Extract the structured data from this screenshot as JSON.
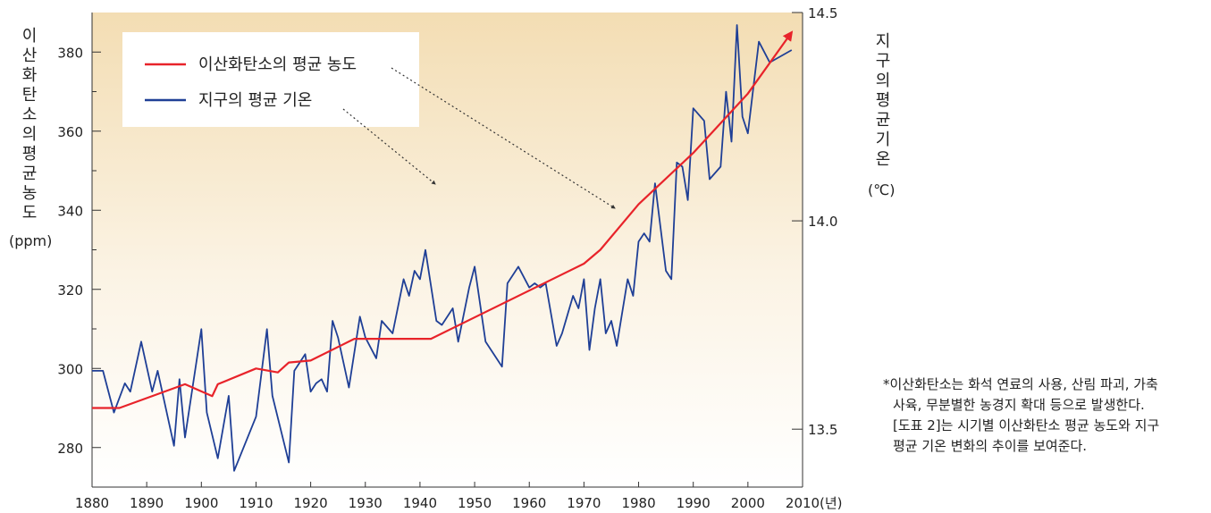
{
  "chart_data": {
    "type": "line",
    "x_range": [
      1880,
      2010
    ],
    "x_ticks": [
      "1880",
      "1890",
      "1900",
      "1910",
      "1920",
      "1930",
      "1940",
      "1950",
      "1960",
      "1970",
      "1980",
      "1990",
      "2000",
      "2010"
    ],
    "x_unit": "(년)",
    "y_left": {
      "label": "이산화탄소의 평균 농도",
      "unit": "(ppm)",
      "range": [
        270,
        390
      ],
      "ticks": [
        "280",
        "300",
        "320",
        "340",
        "360",
        "380"
      ]
    },
    "y_right": {
      "label": "지구의 평균 기온",
      "unit": "(℃)",
      "range": [
        13.361,
        14.5
      ],
      "ticks": [
        "13.5",
        "14.0",
        "14.5"
      ]
    },
    "series": [
      {
        "name": "이산화탄소의 평균 농도",
        "color": "#e8232a",
        "axis": "left",
        "arrow": true,
        "x": [
          1880,
          1885,
          1897,
          1902,
          1903,
          1910,
          1914,
          1916,
          1920,
          1928,
          1942,
          1970,
          1973,
          1980,
          1990,
          2000,
          2008
        ],
        "y": [
          290,
          290,
          296,
          293,
          296,
          300,
          299,
          301.5,
          302,
          307.5,
          307.5,
          326.5,
          330,
          341.5,
          354.5,
          369.5,
          385
        ]
      },
      {
        "name": "지구의 평균 기온",
        "color": "#1f3f96",
        "axis": "right",
        "x": [
          1880,
          1882,
          1884,
          1886,
          1887,
          1889,
          1891,
          1892,
          1895,
          1896,
          1897,
          1900,
          1901,
          1903,
          1905,
          1906,
          1910,
          1912,
          1913,
          1916,
          1917,
          1919,
          1920,
          1921,
          1922,
          1923,
          1924,
          1925,
          1927,
          1929,
          1930,
          1932,
          1933,
          1935,
          1937,
          1938,
          1939,
          1940,
          1941,
          1943,
          1944,
          1946,
          1947,
          1949,
          1950,
          1952,
          1955,
          1956,
          1958,
          1960,
          1961,
          1962,
          1963,
          1965,
          1966,
          1968,
          1969,
          1970,
          1971,
          1972,
          1973,
          1974,
          1975,
          1976,
          1978,
          1979,
          1980,
          1981,
          1982,
          1983,
          1985,
          1986,
          1987,
          1988,
          1989,
          1990,
          1992,
          1993,
          1995,
          1996,
          1997,
          1998,
          1999,
          2000,
          2002,
          2004,
          2008
        ],
        "y": [
          13.64,
          13.64,
          13.54,
          13.61,
          13.59,
          13.71,
          13.59,
          13.64,
          13.46,
          13.62,
          13.48,
          13.74,
          13.54,
          13.43,
          13.58,
          13.4,
          13.53,
          13.74,
          13.58,
          13.42,
          13.64,
          13.68,
          13.59,
          13.61,
          13.62,
          13.59,
          13.76,
          13.72,
          13.6,
          13.77,
          13.72,
          13.67,
          13.76,
          13.73,
          13.86,
          13.82,
          13.88,
          13.86,
          13.93,
          13.76,
          13.75,
          13.79,
          13.71,
          13.84,
          13.89,
          13.71,
          13.65,
          13.85,
          13.89,
          13.84,
          13.85,
          13.84,
          13.85,
          13.7,
          13.73,
          13.82,
          13.79,
          13.86,
          13.69,
          13.79,
          13.86,
          13.73,
          13.76,
          13.7,
          13.86,
          13.82,
          13.95,
          13.97,
          13.95,
          14.09,
          13.88,
          13.86,
          14.14,
          14.13,
          14.05,
          14.27,
          14.24,
          14.1,
          14.13,
          14.31,
          14.19,
          14.47,
          14.25,
          14.21,
          14.43,
          14.38,
          14.41
        ]
      }
    ],
    "legend": {
      "placement": "top-left"
    }
  },
  "note": {
    "line1": "*이산화탄소는 화석 연료의 사용, 산림 파괴, 가축",
    "line2": "사육, 무분별한 농경지 확대 등으로 발생한다.",
    "line3": "[도표 2]는 시기별 이산화탄소 평균 농도와 지구",
    "line4": "평균 기온 변화의 추이를 보여준다."
  }
}
